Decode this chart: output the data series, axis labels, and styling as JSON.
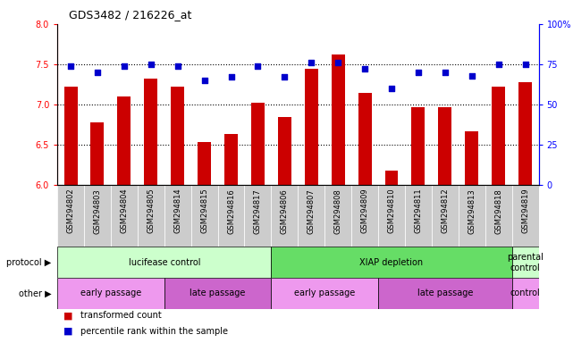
{
  "title": "GDS3482 / 216226_at",
  "samples": [
    "GSM294802",
    "GSM294803",
    "GSM294804",
    "GSM294805",
    "GSM294814",
    "GSM294815",
    "GSM294816",
    "GSM294817",
    "GSM294806",
    "GSM294807",
    "GSM294808",
    "GSM294809",
    "GSM294810",
    "GSM294811",
    "GSM294812",
    "GSM294813",
    "GSM294818",
    "GSM294819"
  ],
  "bar_values": [
    7.22,
    6.78,
    7.1,
    7.32,
    7.22,
    6.54,
    6.64,
    7.02,
    6.85,
    7.45,
    7.62,
    7.15,
    6.18,
    6.97,
    6.97,
    6.67,
    7.22,
    7.28
  ],
  "dot_values": [
    74,
    70,
    74,
    75,
    74,
    65,
    67,
    74,
    67,
    76,
    76,
    72,
    60,
    70,
    70,
    68,
    75,
    75
  ],
  "ylim_left": [
    6.0,
    8.0
  ],
  "ylim_right": [
    0,
    100
  ],
  "yticks_left": [
    6.0,
    6.5,
    7.0,
    7.5,
    8.0
  ],
  "yticks_right": [
    0,
    25,
    50,
    75,
    100
  ],
  "bar_color": "#cc0000",
  "dot_color": "#0000cc",
  "protocol_groups": [
    {
      "label": "lucifease control",
      "start": 0,
      "end": 8,
      "color": "#ccffcc"
    },
    {
      "label": "XIAP depletion",
      "start": 8,
      "end": 17,
      "color": "#66dd66"
    },
    {
      "label": "parental\ncontrol",
      "start": 17,
      "end": 18,
      "color": "#ccffcc"
    }
  ],
  "other_groups": [
    {
      "label": "early passage",
      "start": 0,
      "end": 4,
      "color": "#ee99ee"
    },
    {
      "label": "late passage",
      "start": 4,
      "end": 8,
      "color": "#cc66cc"
    },
    {
      "label": "early passage",
      "start": 8,
      "end": 12,
      "color": "#ee99ee"
    },
    {
      "label": "late passage",
      "start": 12,
      "end": 17,
      "color": "#cc66cc"
    },
    {
      "label": "control",
      "start": 17,
      "end": 18,
      "color": "#ee99ee"
    }
  ],
  "legend_items": [
    {
      "label": "transformed count",
      "color": "#cc0000"
    },
    {
      "label": "percentile rank within the sample",
      "color": "#0000cc"
    }
  ]
}
